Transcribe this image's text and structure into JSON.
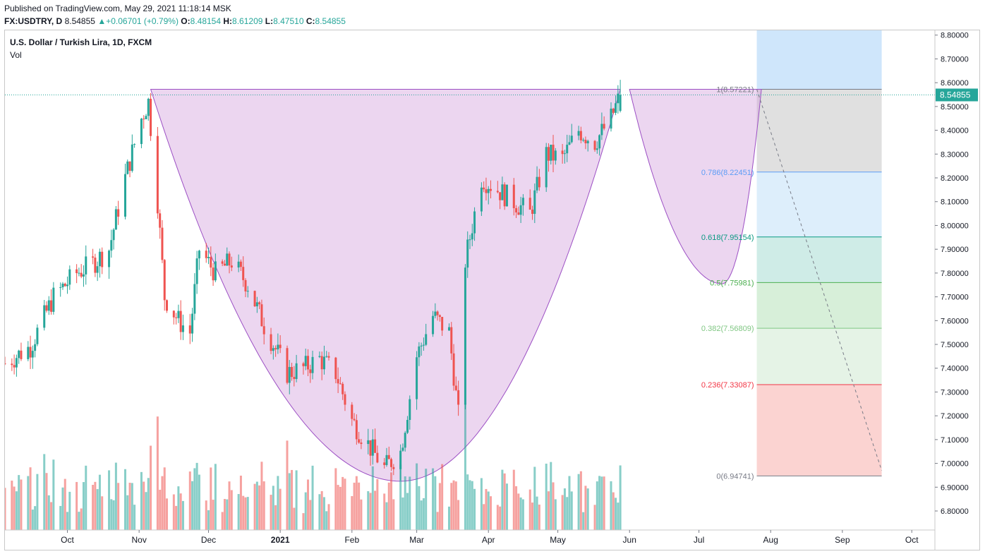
{
  "header": {
    "published": "Published on TradingView.com, May 29, 2021 11:18:14 MSK",
    "symbol": "FX:USDTRY, D",
    "last": "8.54855",
    "change": "+0.06701 (+0.79%)",
    "o_label": "O:",
    "o_val": "8.48154",
    "h_label": "H:",
    "h_val": "8.61209",
    "l_label": "L:",
    "l_val": "8.47510",
    "c_label": "C:",
    "c_val": "8.54855"
  },
  "legend": {
    "title": "U.S. Dollar / Turkish Lira, 1D, FXCM",
    "vol": "Vol"
  },
  "colors": {
    "up": "#26a69a",
    "down": "#ef5350",
    "cup_fill": "#ce93d8",
    "cup_stroke": "#9c4fc4",
    "price_line": "#26a69a"
  },
  "chart_data": {
    "type": "candlestick",
    "title": "U.S. Dollar / Turkish Lira, 1D, FXCM",
    "y_ticks": [
      "8.80000",
      "8.70000",
      "8.60000",
      "8.50000",
      "8.40000",
      "8.30000",
      "8.20000",
      "8.10000",
      "8.00000",
      "7.90000",
      "7.80000",
      "7.70000",
      "7.60000",
      "7.50000",
      "7.40000",
      "7.30000",
      "7.20000",
      "7.10000",
      "7.00000",
      "6.90000",
      "6.80000"
    ],
    "ylim": [
      6.72,
      8.82
    ],
    "x_ticks": [
      {
        "label": "Oct",
        "date": "2020-10-01"
      },
      {
        "label": "Nov",
        "date": "2020-11-01"
      },
      {
        "label": "Dec",
        "date": "2020-12-01"
      },
      {
        "label": "2021",
        "date": "2021-01-01"
      },
      {
        "label": "Feb",
        "date": "2021-02-01"
      },
      {
        "label": "Mar",
        "date": "2021-03-01"
      },
      {
        "label": "Apr",
        "date": "2021-04-01"
      },
      {
        "label": "May",
        "date": "2021-05-01"
      },
      {
        "label": "Jun",
        "date": "2021-06-01"
      },
      {
        "label": "Jul",
        "date": "2021-07-01"
      },
      {
        "label": "Aug",
        "date": "2021-08-01"
      },
      {
        "label": "Sep",
        "date": "2021-09-01"
      },
      {
        "label": "Oct",
        "date": "2021-10-01"
      }
    ],
    "x_range": [
      "2020-09-04",
      "2021-10-11"
    ],
    "last_price": "8.54855",
    "closes": [
      {
        "date": "2020-09-04",
        "close": 7.42
      },
      {
        "date": "2020-09-15",
        "close": 7.49
      },
      {
        "date": "2020-09-25",
        "close": 7.7
      },
      {
        "date": "2020-10-05",
        "close": 7.8
      },
      {
        "date": "2020-10-12",
        "close": 7.84
      },
      {
        "date": "2020-10-19",
        "close": 7.9
      },
      {
        "date": "2020-10-26",
        "close": 8.2
      },
      {
        "date": "2020-11-02",
        "close": 8.45
      },
      {
        "date": "2020-11-05",
        "close": 8.52
      },
      {
        "date": "2020-11-09",
        "close": 8.1
      },
      {
        "date": "2020-11-12",
        "close": 7.7
      },
      {
        "date": "2020-11-18",
        "close": 7.6
      },
      {
        "date": "2020-11-23",
        "close": 7.55
      },
      {
        "date": "2020-11-27",
        "close": 7.9
      },
      {
        "date": "2020-12-04",
        "close": 7.8
      },
      {
        "date": "2020-12-11",
        "close": 7.85
      },
      {
        "date": "2020-12-18",
        "close": 7.75
      },
      {
        "date": "2020-12-25",
        "close": 7.58
      },
      {
        "date": "2021-01-04",
        "close": 7.38
      },
      {
        "date": "2021-01-11",
        "close": 7.4
      },
      {
        "date": "2021-01-18",
        "close": 7.44
      },
      {
        "date": "2021-01-25",
        "close": 7.38
      },
      {
        "date": "2021-02-01",
        "close": 7.18
      },
      {
        "date": "2021-02-08",
        "close": 7.08
      },
      {
        "date": "2021-02-15",
        "close": 6.98
      },
      {
        "date": "2021-02-22",
        "close": 7.05
      },
      {
        "date": "2021-03-01",
        "close": 7.45
      },
      {
        "date": "2021-03-08",
        "close": 7.62
      },
      {
        "date": "2021-03-15",
        "close": 7.55
      },
      {
        "date": "2021-03-19",
        "close": 7.2
      },
      {
        "date": "2021-03-22",
        "close": 7.85
      },
      {
        "date": "2021-03-29",
        "close": 8.2
      },
      {
        "date": "2021-04-05",
        "close": 8.15
      },
      {
        "date": "2021-04-12",
        "close": 8.1
      },
      {
        "date": "2021-04-19",
        "close": 8.05
      },
      {
        "date": "2021-04-26",
        "close": 8.3
      },
      {
        "date": "2021-05-03",
        "close": 8.28
      },
      {
        "date": "2021-05-10",
        "close": 8.4
      },
      {
        "date": "2021-05-17",
        "close": 8.35
      },
      {
        "date": "2021-05-24",
        "close": 8.45
      },
      {
        "date": "2021-05-28",
        "close": 8.55
      }
    ],
    "cup_and_handle": {
      "rim_price": 8.57221,
      "cup_start": "2020-11-06",
      "cup_end": "2021-05-28",
      "cup_bottom_date": "2021-02-22",
      "cup_bottom_price": 6.925,
      "handle_start": "2021-06-01",
      "handle_end": "2021-07-28",
      "handle_bottom_date": "2021-07-11",
      "handle_bottom_price": 7.755
    },
    "fib_retracement": {
      "start_date": "2021-07-26",
      "end_date": "2021-09-18",
      "levels": [
        {
          "ratio": "1",
          "label": "1(8.57221)",
          "price": 8.57221,
          "color": "#787b86",
          "zone": "#e0e0e0"
        },
        {
          "ratio": "0.786",
          "label": "0.786(8.22451)",
          "price": 8.22451,
          "color": "#5b9cf6",
          "zone": "#ddeefb"
        },
        {
          "ratio": "0.618",
          "label": "0.618(7.95154)",
          "price": 7.95154,
          "color": "#089981",
          "zone": "#cfece7"
        },
        {
          "ratio": "0.5",
          "label": "0.5(7.75981)",
          "price": 7.75981,
          "color": "#4caf50",
          "zone": "#d7efd9"
        },
        {
          "ratio": "0.382",
          "label": "0.382(7.56809)",
          "price": 7.56809,
          "color": "#81c784",
          "zone": "#e5f3e6"
        },
        {
          "ratio": "0.236",
          "label": "0.236(7.33087)",
          "price": 7.33087,
          "color": "#f23645",
          "zone": "#fbd3d1"
        },
        {
          "ratio": "0",
          "label": "0(6.94741)",
          "price": 6.94741,
          "color": "#787b86",
          "zone": null
        }
      ],
      "upper_zone_top": 8.82,
      "upper_zone_color": "#cfe6fb",
      "trend_line": [
        {
          "date": "2021-07-26",
          "price": 8.57221
        },
        {
          "date": "2021-09-18",
          "price": 6.97
        }
      ]
    }
  }
}
